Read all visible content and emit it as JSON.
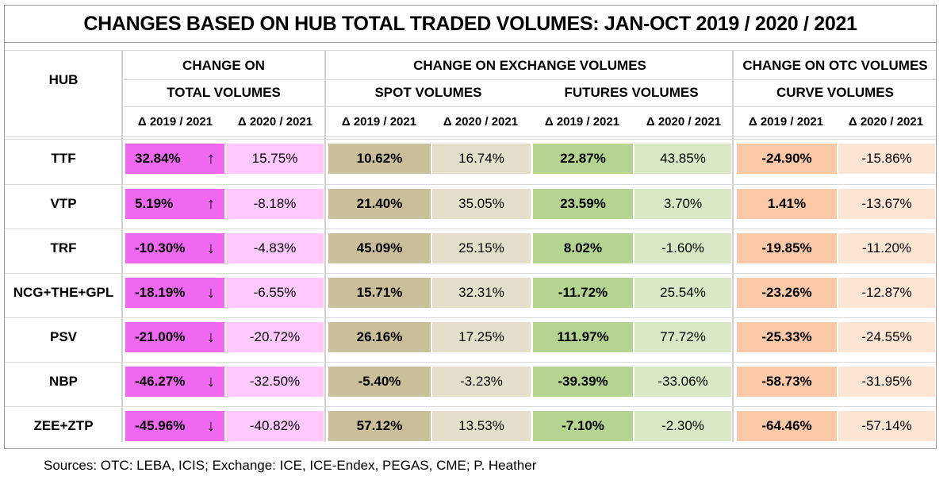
{
  "title": "CHANGES BASED ON HUB TOTAL TRADED VOLUMES:  JAN-OCT  2019 / 2020 / 2021",
  "headers": {
    "hub": "HUB",
    "total_line1": "CHANGE ON",
    "total_line2": "TOTAL VOLUMES",
    "exchange": "CHANGE ON EXCHANGE VOLUMES",
    "spot": "SPOT VOLUMES",
    "futures": "FUTURES VOLUMES",
    "otc": "CHANGE ON OTC VOLUMES",
    "curve": "CURVE VOLUMES",
    "d1921": "Δ 2019 / 2021",
    "d2021": "Δ 2020 / 2021"
  },
  "colors": {
    "total_19": "#f067f0",
    "total_20": "#ffc8ff",
    "spot_19": "#c9bf98",
    "spot_20": "#e4dfcb",
    "fut_19": "#b4d490",
    "fut_20": "#d9e9c6",
    "otc_19": "#fcc9a6",
    "otc_20": "#fde5d4"
  },
  "chart_data": {
    "type": "table",
    "title": "CHANGES BASED ON HUB TOTAL TRADED VOLUMES:  JAN-OCT  2019 / 2020 / 2021",
    "columns": [
      "total_19",
      "total_20",
      "spot_19",
      "spot_20",
      "fut_19",
      "fut_20",
      "otc_19",
      "otc_20"
    ],
    "rows": [
      {
        "hub": "TTF",
        "arrow": "↑",
        "values": [
          "32.84%",
          "15.75%",
          "10.62%",
          "16.74%",
          "22.87%",
          "43.85%",
          "-24.90%",
          "-15.86%"
        ]
      },
      {
        "hub": "VTP",
        "arrow": "↑",
        "values": [
          "5.19%",
          "-8.18%",
          "21.40%",
          "35.05%",
          "23.59%",
          "3.70%",
          "1.41%",
          "-13.67%"
        ]
      },
      {
        "hub": "TRF",
        "arrow": "↓",
        "values": [
          "-10.30%",
          "-4.83%",
          "45.09%",
          "25.15%",
          "8.02%",
          "-1.60%",
          "-19.85%",
          "-11.20%"
        ]
      },
      {
        "hub": "NCG+THE+GPL",
        "arrow": "↓",
        "values": [
          "-18.19%",
          "-6.55%",
          "15.71%",
          "32.31%",
          "-11.72%",
          "25.54%",
          "-23.26%",
          "-12.87%"
        ]
      },
      {
        "hub": "PSV",
        "arrow": "↓",
        "values": [
          "-21.00%",
          "-20.72%",
          "26.16%",
          "17.25%",
          "111.97%",
          "77.72%",
          "-25.33%",
          "-24.55%"
        ]
      },
      {
        "hub": "NBP",
        "arrow": "↓",
        "values": [
          "-46.27%",
          "-32.50%",
          "-5.40%",
          "-3.23%",
          "-39.39%",
          "-33.06%",
          "-58.73%",
          "-31.95%"
        ]
      },
      {
        "hub": "ZEE+ZTP",
        "arrow": "↓",
        "values": [
          "-45.96%",
          "-40.82%",
          "57.12%",
          "13.53%",
          "-7.10%",
          "-2.30%",
          "-64.46%",
          "-57.14%"
        ]
      }
    ]
  },
  "footer": {
    "sources": "Sources: OTC: LEBA, ICIS; Exchange: ICE, ICE-Endex, PEGAS, CME; P. Heather"
  }
}
